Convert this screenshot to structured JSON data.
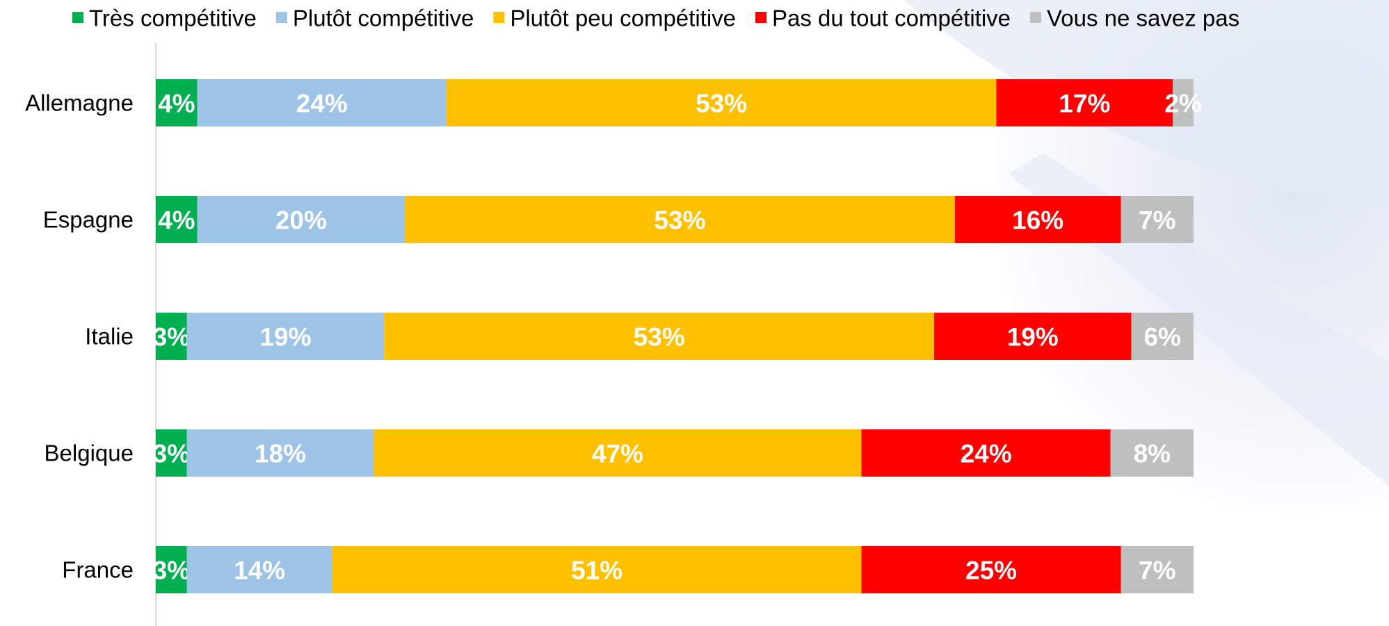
{
  "chart_data": {
    "type": "stacked-bar-horizontal",
    "categories": [
      "Allemagne",
      "Espagne",
      "Italie",
      "Belgique",
      "France"
    ],
    "xlim": [
      0,
      100
    ],
    "series": [
      {
        "name": "Très compétitive",
        "color": "#00b050",
        "values": [
          4,
          4,
          3,
          3,
          3
        ],
        "value_labels": [
          "4%",
          "4%",
          "3%",
          "3%",
          "3%"
        ]
      },
      {
        "name": "Plutôt compétitive",
        "color": "#9dc3e6",
        "values": [
          24,
          20,
          19,
          18,
          14
        ],
        "value_labels": [
          "24%",
          "20%",
          "19%",
          "18%",
          "14%"
        ]
      },
      {
        "name": "Plutôt peu compétitive",
        "color": "#ffc000",
        "values": [
          53,
          53,
          53,
          47,
          51
        ],
        "value_labels": [
          "53%",
          "53%",
          "53%",
          "47%",
          "51%"
        ]
      },
      {
        "name": "Pas du tout compétitive",
        "color": "#ff0000",
        "values": [
          17,
          16,
          19,
          24,
          25
        ],
        "value_labels": [
          "17%",
          "16%",
          "19%",
          "24%",
          "25%"
        ]
      },
      {
        "name": "Vous ne savez pas",
        "color": "#bfbfbf",
        "values": [
          2,
          7,
          6,
          8,
          7
        ],
        "value_labels": [
          "2%",
          "7%",
          "6%",
          "8%",
          "7%"
        ]
      }
    ]
  }
}
